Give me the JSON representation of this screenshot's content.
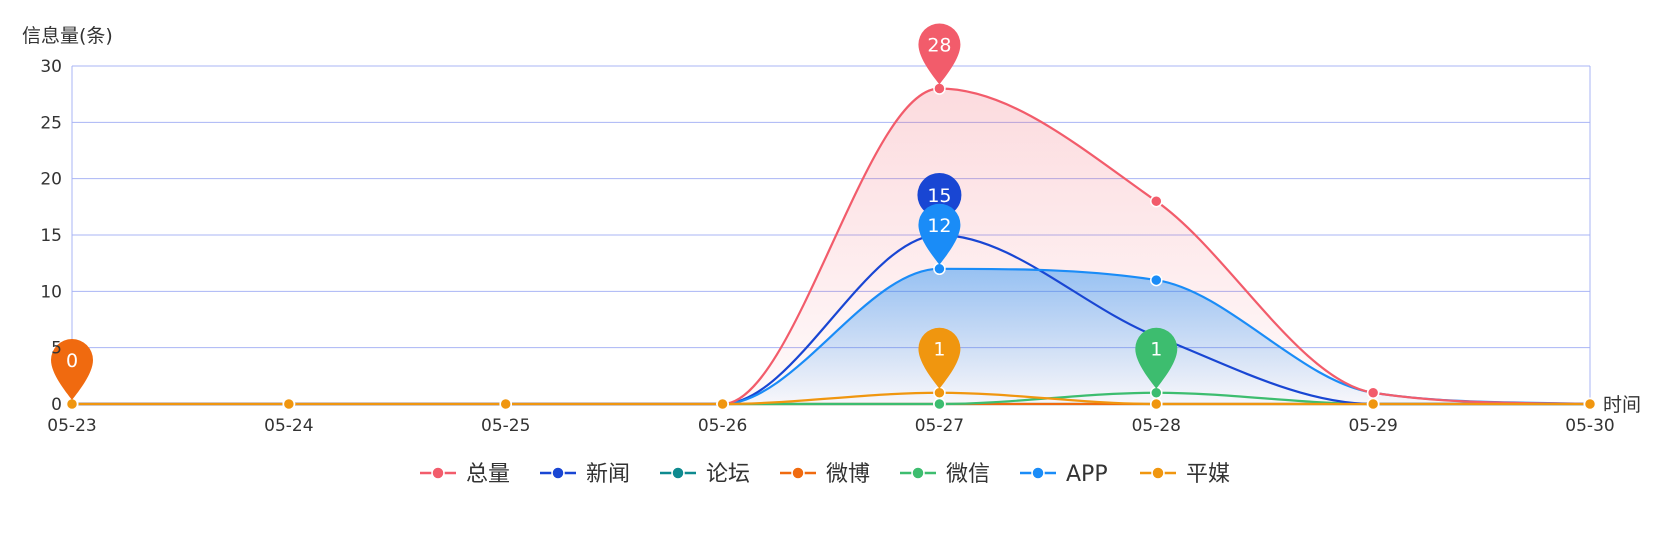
{
  "chart_data": {
    "type": "line",
    "ylabel": "信息量(条)",
    "xlabel": "时间",
    "ylim": [
      0,
      30
    ],
    "y_ticks": [
      "0",
      "5",
      "10",
      "15",
      "20",
      "25",
      "30"
    ],
    "categories": [
      "05-23",
      "05-24",
      "05-25",
      "05-26",
      "05-27",
      "05-28",
      "05-29",
      "05-30"
    ],
    "grid": true,
    "legend_position": "bottom-center",
    "series": [
      {
        "name": "总量",
        "color": "#f25c6b",
        "values": [
          0,
          0,
          0,
          0,
          28,
          18,
          1,
          0
        ],
        "area": true,
        "max_label": "28",
        "max_label_index": 4
      },
      {
        "name": "新闻",
        "color": "#1946d3",
        "values": [
          0,
          0,
          0,
          0,
          15,
          6,
          0,
          0
        ],
        "area": false,
        "max_label": "15",
        "max_label_index": 4
      },
      {
        "name": "论坛",
        "color": "#0e8a8f",
        "values": [
          0,
          0,
          0,
          0,
          0,
          0,
          0,
          0
        ],
        "area": false
      },
      {
        "name": "微博",
        "color": "#f06a0f",
        "values": [
          0,
          0,
          0,
          0,
          0,
          0,
          0,
          0
        ],
        "area": false,
        "max_label": "0",
        "max_label_index": 0
      },
      {
        "name": "微信",
        "color": "#3dbd6f",
        "values": [
          0,
          0,
          0,
          0,
          0,
          1,
          0,
          0
        ],
        "area": false,
        "max_label": "1",
        "max_label_index": 5
      },
      {
        "name": "APP",
        "color": "#1a8cf7",
        "values": [
          0,
          0,
          0,
          0,
          12,
          11,
          1,
          0
        ],
        "area": true,
        "max_label": "12",
        "max_label_index": 4
      },
      {
        "name": "平媒",
        "color": "#f0960f",
        "values": [
          0,
          0,
          0,
          0,
          1,
          0,
          0,
          0
        ],
        "area": false,
        "max_label": "1",
        "max_label_index": 4
      }
    ]
  }
}
